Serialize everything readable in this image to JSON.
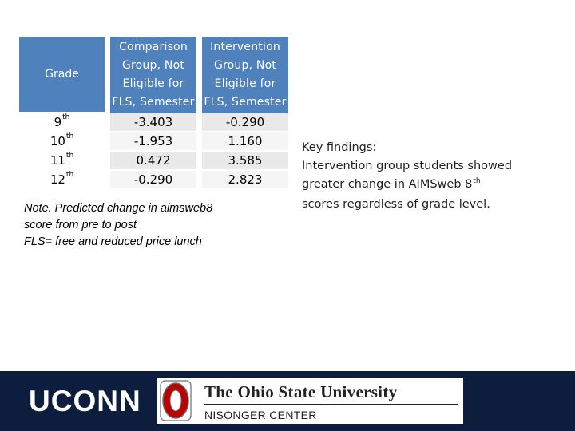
{
  "table": {
    "header": {
      "grade": "Grade",
      "col1": [
        "Comparison",
        "Group, Not",
        "Eligible for",
        "FLS, Semester"
      ],
      "col2": [
        "Intervention",
        "Group, Not",
        "Eligible for",
        "FLS, Semester"
      ]
    },
    "rows": [
      {
        "grade_num": "9",
        "grade_sup": "th",
        "v1": "-3.403",
        "v2": "-0.290"
      },
      {
        "grade_num": "10",
        "grade_sup": "th",
        "v1": "-1.953",
        "v2": "1.160"
      },
      {
        "grade_num": "11",
        "grade_sup": "th",
        "v1": "0.472",
        "v2": "3.585"
      },
      {
        "grade_num": "12",
        "grade_sup": "th",
        "v1": "-0.290",
        "v2": "2.823"
      }
    ],
    "colors": {
      "header_bg": "#4f81bd",
      "row_odd": "#e9e9e9",
      "row_even": "#f5f5f5"
    }
  },
  "note": [
    "Note. Predicted change in aimsweb8",
    "score from pre to post",
    "FLS= free and reduced price lunch"
  ],
  "findings": {
    "title": "Key findings:",
    "line1": "Intervention group students showed",
    "line2a": "greater change in AIMSweb 8",
    "line2sup": "th",
    "line3": "scores regardless of grade level."
  },
  "footer": {
    "bg_color": "#0c1d3d",
    "left_logo_text": "UCONN",
    "osu_icon": "block-o-icon",
    "osu_name": "The Ohio State University",
    "osu_sub": "NISONGER CENTER"
  }
}
